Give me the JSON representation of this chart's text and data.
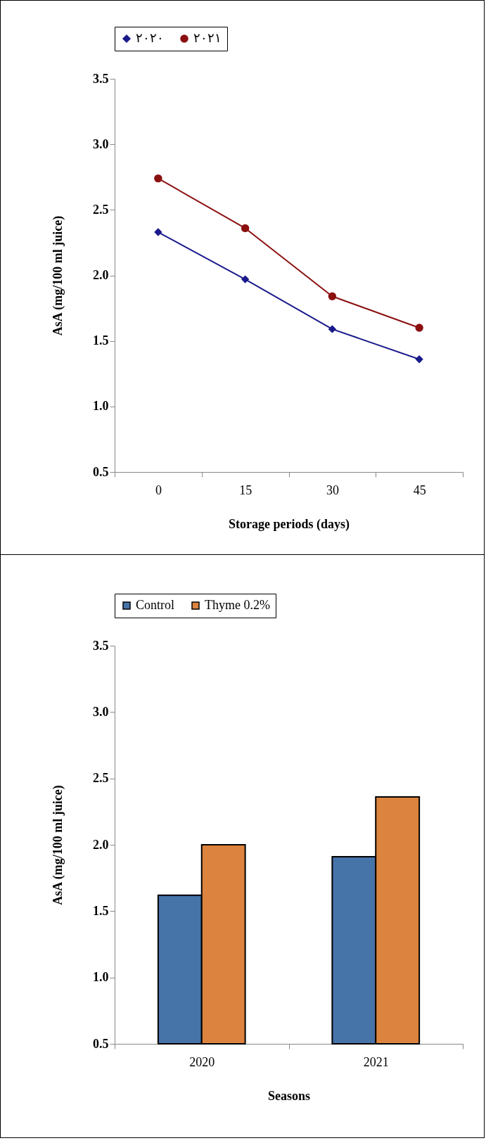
{
  "chart_data": [
    {
      "type": "line",
      "xlabel": "Storage periods (days)",
      "ylabel": "AsA  (mg/100 ml juice)",
      "categories": [
        "0",
        "15",
        "30",
        "45"
      ],
      "series": [
        {
          "name": "٢٠٢٠",
          "color": "#1a1a8c",
          "marker": "diamond",
          "values": [
            2.33,
            1.97,
            1.59,
            1.36
          ]
        },
        {
          "name": "٢٠٢١",
          "color": "#8b0f0f",
          "marker": "circle",
          "values": [
            2.74,
            2.36,
            1.84,
            1.6
          ]
        }
      ],
      "ylim": [
        0.5,
        3.5
      ],
      "yticks": [
        0.5,
        {
          "value": 1,
          "label": "1.0"
        },
        1.5,
        {
          "value": 2,
          "label": "2.0"
        },
        2.5,
        {
          "value": 3,
          "label": "3.0"
        },
        3.5
      ],
      "grid": false,
      "legend": "top",
      "line_style": "solid"
    },
    {
      "type": "bar",
      "xlabel": "Seasons",
      "ylabel": "AsA  (mg/100 ml juice)",
      "categories": [
        "2020",
        "2021"
      ],
      "series": [
        {
          "name": "Control",
          "color": "#4673a8",
          "values": [
            1.62,
            1.91
          ]
        },
        {
          "name": "Thyme 0.2%",
          "color": "#dc843f",
          "values": [
            2.0,
            2.36
          ]
        }
      ],
      "ylim": [
        0.5,
        3.5
      ],
      "yticks": [
        0.5,
        {
          "value": 1,
          "label": "1.0"
        },
        1.5,
        {
          "value": 2,
          "label": "2.0"
        },
        2.5,
        {
          "value": 3,
          "label": "3.0"
        },
        3.5
      ],
      "grid": false,
      "legend": "top"
    }
  ]
}
